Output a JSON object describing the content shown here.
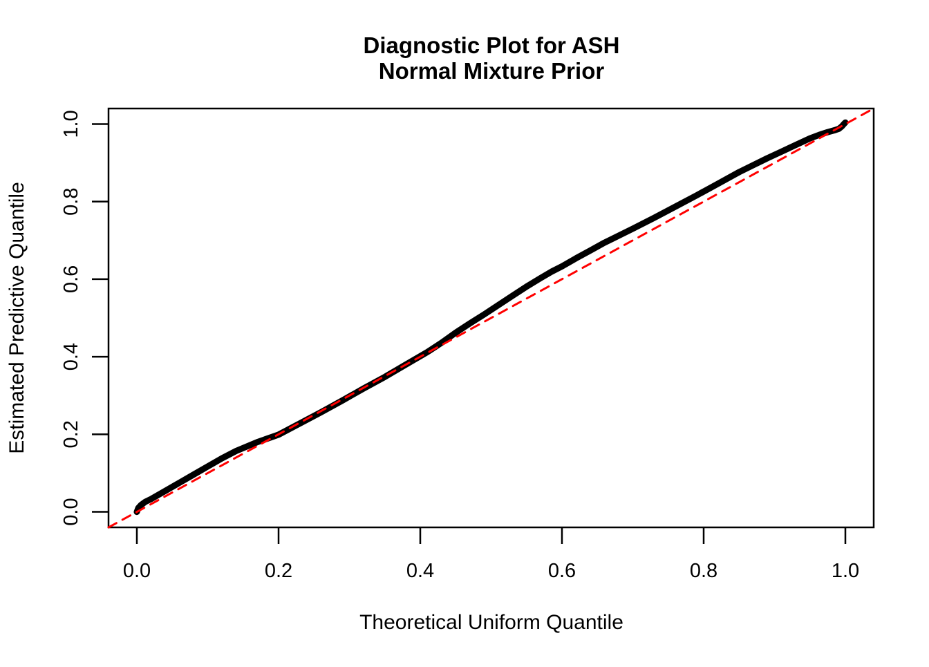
{
  "chart_data": {
    "type": "line",
    "title_line1": "Diagnostic Plot for ASH",
    "title_line2": "Normal Mixture Prior",
    "xlabel": "Theoretical Uniform Quantile",
    "ylabel": "Estimated Predictive Quantile",
    "xlim": [
      -0.04,
      1.04
    ],
    "ylim": [
      -0.04,
      1.04
    ],
    "grid": false,
    "legend": null,
    "x_ticks": [
      0.0,
      0.2,
      0.4,
      0.6,
      0.8,
      1.0
    ],
    "y_ticks": [
      0.0,
      0.2,
      0.4,
      0.6,
      0.8,
      1.0
    ],
    "x_tick_labels": [
      "0.0",
      "0.2",
      "0.4",
      "0.6",
      "0.8",
      "1.0"
    ],
    "y_tick_labels": [
      "0.0",
      "0.2",
      "0.4",
      "0.6",
      "0.8",
      "1.0"
    ],
    "colors": {
      "curve": "#000000",
      "reference_line": "#FF0000",
      "axes": "#000000"
    },
    "series": [
      {
        "name": "estimated-predictive-quantile-curve",
        "type": "line",
        "color": "#000000",
        "stroke_width": 9,
        "dashed": false,
        "points": [
          [
            0.0,
            0.0
          ],
          [
            0.002,
            0.01
          ],
          [
            0.006,
            0.018
          ],
          [
            0.012,
            0.026
          ],
          [
            0.02,
            0.033
          ],
          [
            0.04,
            0.054
          ],
          [
            0.06,
            0.075
          ],
          [
            0.08,
            0.096
          ],
          [
            0.1,
            0.117
          ],
          [
            0.12,
            0.138
          ],
          [
            0.14,
            0.157
          ],
          [
            0.17,
            0.18
          ],
          [
            0.2,
            0.199
          ],
          [
            0.23,
            0.228
          ],
          [
            0.26,
            0.257
          ],
          [
            0.29,
            0.287
          ],
          [
            0.32,
            0.318
          ],
          [
            0.35,
            0.348
          ],
          [
            0.38,
            0.38
          ],
          [
            0.41,
            0.412
          ],
          [
            0.43,
            0.436
          ],
          [
            0.45,
            0.462
          ],
          [
            0.47,
            0.486
          ],
          [
            0.49,
            0.509
          ],
          [
            0.51,
            0.533
          ],
          [
            0.53,
            0.557
          ],
          [
            0.55,
            0.581
          ],
          [
            0.57,
            0.603
          ],
          [
            0.585,
            0.619
          ],
          [
            0.6,
            0.633
          ],
          [
            0.62,
            0.654
          ],
          [
            0.64,
            0.674
          ],
          [
            0.66,
            0.694
          ],
          [
            0.68,
            0.712
          ],
          [
            0.7,
            0.73
          ],
          [
            0.73,
            0.758
          ],
          [
            0.76,
            0.787
          ],
          [
            0.79,
            0.816
          ],
          [
            0.82,
            0.846
          ],
          [
            0.85,
            0.876
          ],
          [
            0.87,
            0.894
          ],
          [
            0.89,
            0.912
          ],
          [
            0.91,
            0.929
          ],
          [
            0.93,
            0.946
          ],
          [
            0.95,
            0.963
          ],
          [
            0.963,
            0.972
          ],
          [
            0.975,
            0.979
          ],
          [
            0.985,
            0.984
          ],
          [
            0.991,
            0.988
          ],
          [
            0.995,
            0.994
          ],
          [
            0.998,
            1.0
          ],
          [
            1.0,
            1.004
          ]
        ]
      },
      {
        "name": "identity-reference-line",
        "type": "line",
        "color": "#FF0000",
        "stroke_width": 3,
        "dashed": true,
        "points": [
          [
            -0.04,
            -0.04
          ],
          [
            1.04,
            1.04
          ]
        ]
      }
    ]
  }
}
